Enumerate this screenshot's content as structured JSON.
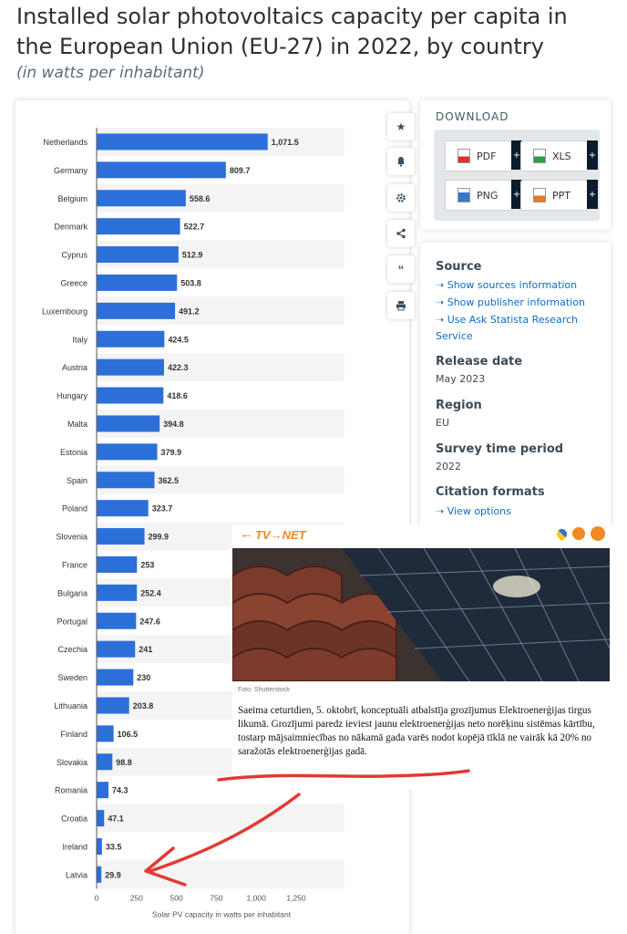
{
  "header": {
    "title": "Installed solar photovoltaics capacity per capita in the European Union (EU-27) in 2022, by country",
    "subtitle": "(in watts per inhabitant)"
  },
  "chart_data": {
    "type": "bar",
    "orientation": "horizontal",
    "categories": [
      "Netherlands",
      "Germany",
      "Belgium",
      "Denmark",
      "Cyprus",
      "Greece",
      "Luxembourg",
      "Italy",
      "Austria",
      "Hungary",
      "Malta",
      "Estonia",
      "Spain",
      "Poland",
      "Slovenia",
      "France",
      "Bulgaria",
      "Portugal",
      "Czechia",
      "Sweden",
      "Lithuania",
      "Finland",
      "Slovakia",
      "Romania",
      "Croatia",
      "Ireland",
      "Latvia"
    ],
    "values": [
      1071.5,
      809.7,
      558.6,
      522.7,
      512.9,
      503.8,
      491.2,
      424.5,
      422.3,
      418.6,
      394.8,
      379.9,
      362.5,
      323.7,
      299.9,
      253,
      252.4,
      247.6,
      241,
      230,
      203.8,
      106.5,
      98.8,
      74.3,
      47.1,
      33.5,
      29.9
    ],
    "value_labels": [
      "1,071.5",
      "809.7",
      "558.6",
      "522.7",
      "512.9",
      "503.8",
      "491.2",
      "424.5",
      "422.3",
      "418.6",
      "394.8",
      "379.9",
      "362.5",
      "323.7",
      "299.9",
      "253",
      "252.4",
      "247.6",
      "241",
      "230",
      "203.8",
      "106.5",
      "98.8",
      "74.3",
      "47.1",
      "33.5",
      "29.9"
    ],
    "xticks": [
      0,
      250,
      500,
      750,
      1000,
      1250
    ],
    "xtick_labels": [
      "0",
      "250",
      "500",
      "750",
      "1,000",
      "1,250"
    ],
    "xlim": [
      0,
      1250
    ],
    "xlabel": "Solar PV capacity in watts per inhabitant",
    "bar_color": "#2d6fd8",
    "grid": false
  },
  "toolbar": [
    "star-icon",
    "bell-icon",
    "gear-icon",
    "share-icon",
    "quote-icon",
    "print-icon"
  ],
  "download": {
    "label": "DOWNLOAD",
    "buttons": [
      {
        "label": "PDF",
        "icon": "pdf-file-icon",
        "color": "#d9342b"
      },
      {
        "label": "XLS",
        "icon": "xls-file-icon",
        "color": "#2e9b47"
      },
      {
        "label": "PNG",
        "icon": "png-file-icon",
        "color": "#3b78c4"
      },
      {
        "label": "PPT",
        "icon": "ppt-file-icon",
        "color": "#e57b27"
      }
    ],
    "plus": "+"
  },
  "info": {
    "source_h": "Source",
    "links": [
      "Show sources information",
      "Show publisher information",
      "Use Ask Statista Research",
      "Service"
    ],
    "release_h": "Release date",
    "release_v": "May 2023",
    "region_h": "Region",
    "region_v": "EU",
    "survey_h": "Survey time period",
    "survey_v": "2022",
    "citation_h": "Citation formats",
    "citation_link": "View options",
    "arrow": "➝"
  },
  "news": {
    "logo": "TV→NET",
    "back_arrow": "←",
    "caption": "Foto: Shutterstock",
    "text": "Saeima ceturtdien, 5. oktobrī, konceptuāli atbalstīja grozījumus Elektroenerģijas tirgus likumā. Grozījumi paredz ieviest jaunu elektroenerģijas neto norēķinu sistēmas kārtību, tostarp mājsaimniecības no nākamā gada varēs nodot kopējā tīklā ne vairāk kā 20% no saražotās elektroenerģijas gadā."
  },
  "annotation_color": "#e23a33"
}
